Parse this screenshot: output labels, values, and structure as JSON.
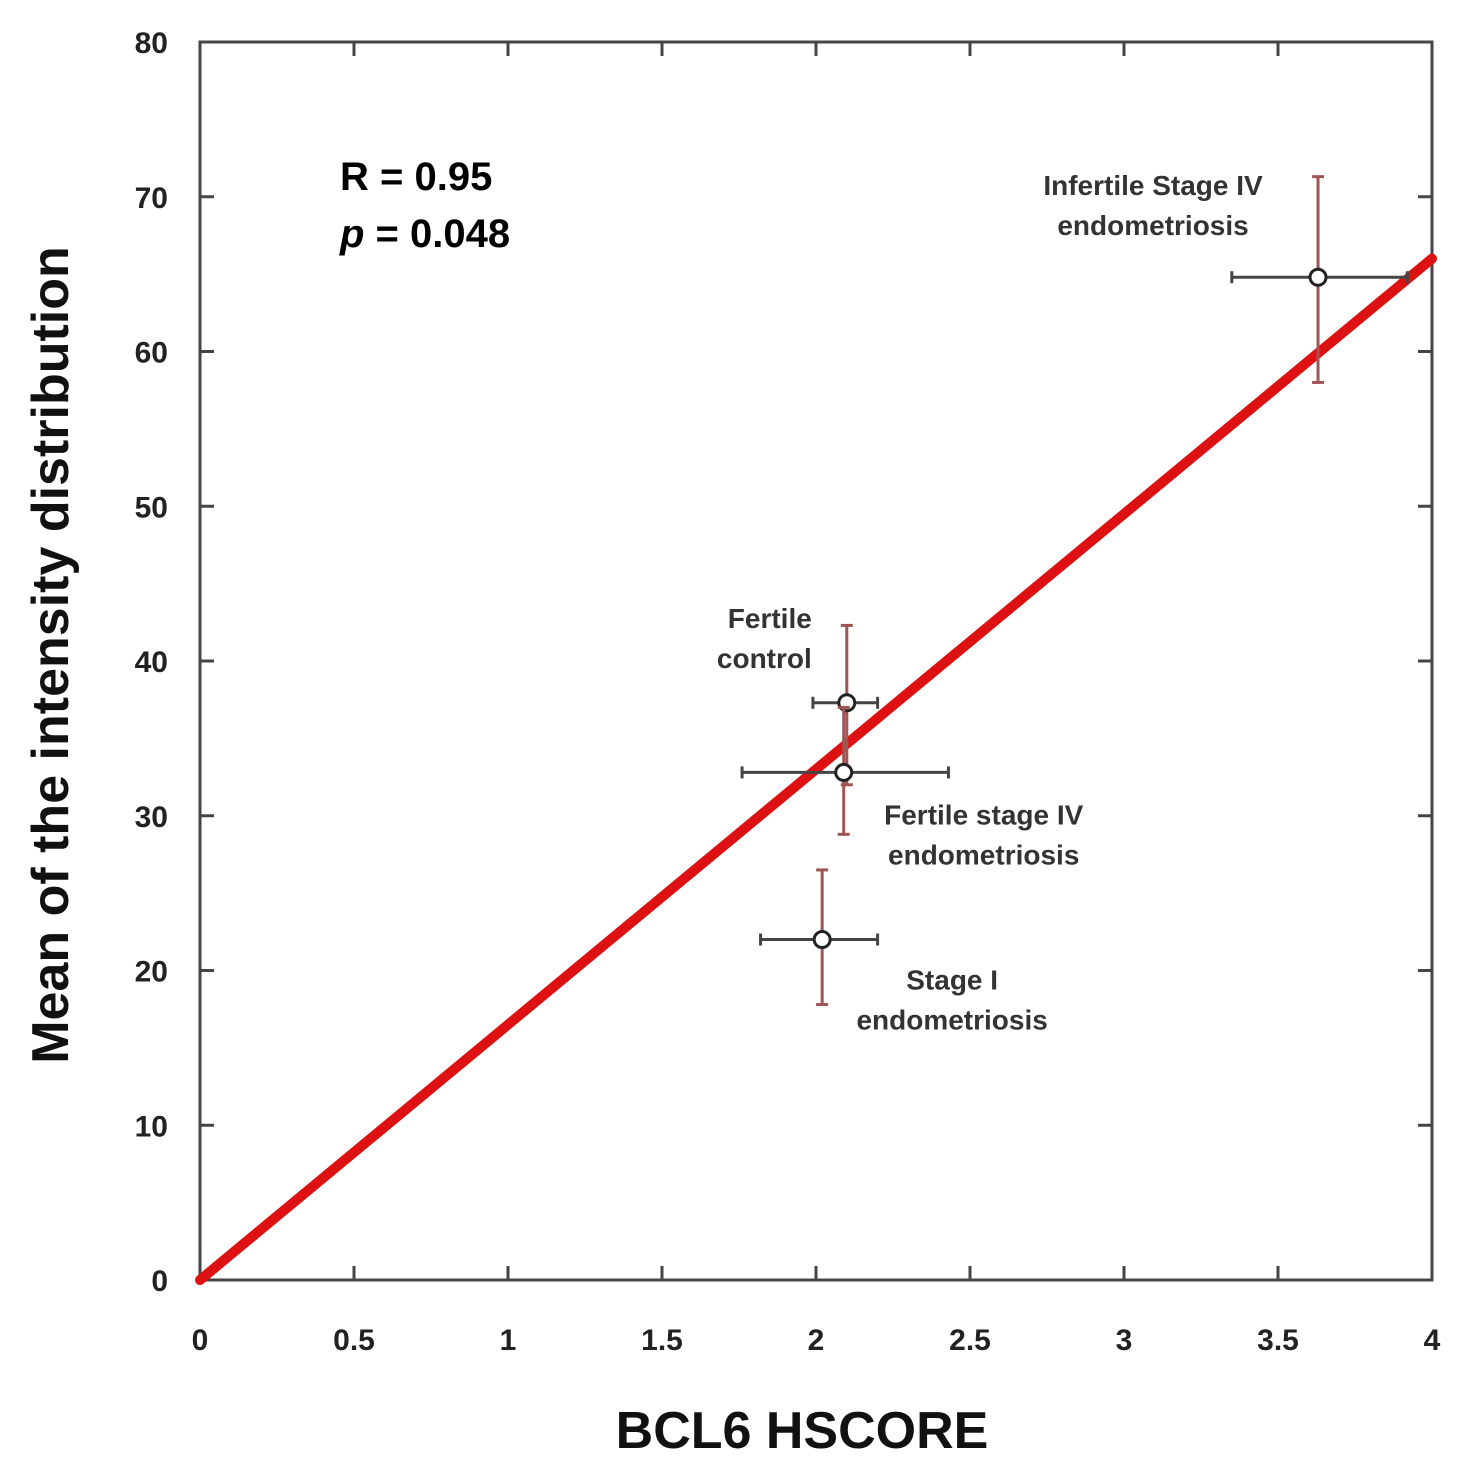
{
  "chart_data": {
    "type": "scatter",
    "xlabel": "BCL6 HSCORE",
    "ylabel": "Mean of the intensity distribution",
    "xlim": [
      0,
      4
    ],
    "ylim": [
      0,
      80
    ],
    "x_ticks": [
      0,
      0.5,
      1,
      1.5,
      2,
      2.5,
      3,
      3.5,
      4
    ],
    "y_ticks": [
      0,
      10,
      20,
      30,
      40,
      50,
      60,
      70,
      80
    ],
    "x_tick_labels": [
      "0",
      "0.5",
      "1",
      "1.5",
      "2",
      "2.5",
      "3",
      "3.5",
      "4"
    ],
    "y_tick_labels": [
      "0",
      "10",
      "20",
      "30",
      "40",
      "50",
      "60",
      "70",
      "80"
    ],
    "grid": false,
    "annotations": {
      "r_text": "R = 0.95",
      "p_symbol": "p",
      "p_value_text": " = 0.048"
    },
    "regression_line": {
      "color": "#dd1111",
      "x": [
        0,
        4
      ],
      "y": [
        0,
        66
      ]
    },
    "points": [
      {
        "x": 2.1,
        "y": 37.3,
        "xerr": [
          1.99,
          2.2
        ],
        "yerr": [
          32.0,
          42.3
        ],
        "label_lines": [
          "Fertile",
          "control"
        ]
      },
      {
        "x": 2.09,
        "y": 32.8,
        "xerr": [
          1.76,
          2.43
        ],
        "yerr": [
          28.8,
          37.0
        ],
        "label_lines": [
          "Fertile stage IV",
          "endometriosis"
        ]
      },
      {
        "x": 2.02,
        "y": 22.0,
        "xerr": [
          1.82,
          2.2
        ],
        "yerr": [
          17.8,
          26.5
        ],
        "label_lines": [
          "Stage I",
          "endometriosis"
        ]
      },
      {
        "x": 3.63,
        "y": 64.8,
        "xerr": [
          3.35,
          3.92
        ],
        "yerr": [
          58.0,
          71.3
        ],
        "label_lines": [
          "Infertile Stage IV",
          "endometriosis"
        ]
      }
    ],
    "colors": {
      "y_error": "#a05555",
      "x_error": "#444444",
      "axis": "#444444"
    }
  }
}
